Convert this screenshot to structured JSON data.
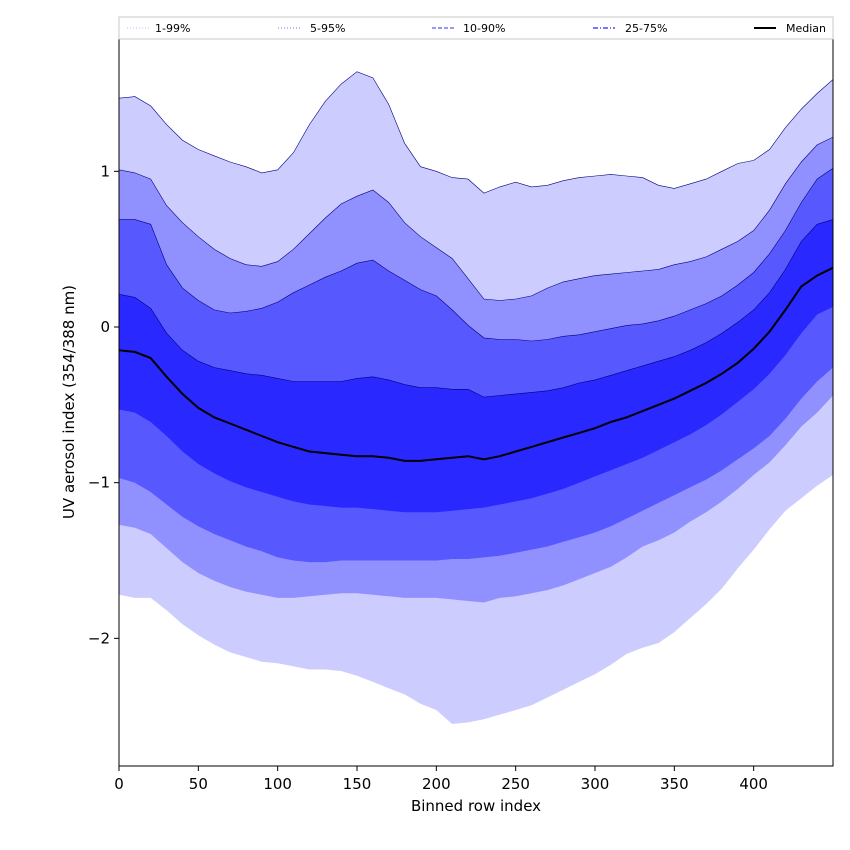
{
  "chart_data": {
    "type": "area",
    "xlabel": "Binned row index",
    "ylabel": "UV aerosol index (354/388 nm)",
    "xlim": [
      0,
      450
    ],
    "ylim": [
      -2.82,
      1.85
    ],
    "xticks": [
      0,
      50,
      100,
      150,
      200,
      250,
      300,
      350,
      400
    ],
    "xtick_labels": [
      "0",
      "50",
      "100",
      "150",
      "200",
      "250",
      "300",
      "350",
      "400"
    ],
    "yticks": [
      -2,
      -1,
      0,
      1
    ],
    "ytick_labels": [
      "−2",
      "−1",
      "0",
      "1"
    ],
    "legend_position": "top",
    "x": [
      0,
      10,
      20,
      30,
      40,
      50,
      60,
      70,
      80,
      90,
      100,
      110,
      120,
      130,
      140,
      150,
      160,
      170,
      180,
      190,
      200,
      210,
      220,
      230,
      240,
      250,
      260,
      270,
      280,
      290,
      300,
      310,
      320,
      330,
      340,
      350,
      360,
      370,
      380,
      390,
      400,
      410,
      420,
      430,
      440,
      450
    ],
    "bands": [
      {
        "name": "1-99%",
        "fill": "#ccccff",
        "edge": "#000080",
        "lower": [
          -1.72,
          -1.74,
          -1.74,
          -1.82,
          -1.91,
          -1.98,
          -2.04,
          -2.09,
          -2.12,
          -2.15,
          -2.16,
          -2.18,
          -2.2,
          -2.2,
          -2.21,
          -2.24,
          -2.28,
          -2.32,
          -2.36,
          -2.42,
          -2.46,
          -2.55,
          -2.54,
          -2.52,
          -2.49,
          -2.46,
          -2.43,
          -2.38,
          -2.33,
          -2.28,
          -2.23,
          -2.17,
          -2.1,
          -2.06,
          -2.03,
          -1.96,
          -1.87,
          -1.78,
          -1.68,
          -1.55,
          -1.43,
          -1.3,
          -1.18,
          -1.1,
          -1.02,
          -0.95
        ],
        "upper": [
          1.47,
          1.48,
          1.42,
          1.3,
          1.2,
          1.14,
          1.1,
          1.06,
          1.03,
          0.99,
          1.01,
          1.12,
          1.3,
          1.45,
          1.56,
          1.64,
          1.6,
          1.43,
          1.18,
          1.03,
          1.0,
          0.96,
          0.95,
          0.86,
          0.9,
          0.93,
          0.9,
          0.91,
          0.94,
          0.96,
          0.97,
          0.98,
          0.97,
          0.96,
          0.91,
          0.89,
          0.92,
          0.95,
          1.0,
          1.05,
          1.07,
          1.14,
          1.28,
          1.4,
          1.5,
          1.59
        ]
      },
      {
        "name": "5-95%",
        "fill": "#9090ff",
        "edge": "#000080",
        "lower": [
          -1.27,
          -1.29,
          -1.33,
          -1.42,
          -1.51,
          -1.58,
          -1.63,
          -1.67,
          -1.7,
          -1.72,
          -1.74,
          -1.74,
          -1.73,
          -1.72,
          -1.71,
          -1.71,
          -1.72,
          -1.73,
          -1.74,
          -1.74,
          -1.74,
          -1.75,
          -1.76,
          -1.77,
          -1.74,
          -1.73,
          -1.71,
          -1.69,
          -1.66,
          -1.62,
          -1.58,
          -1.54,
          -1.48,
          -1.41,
          -1.37,
          -1.32,
          -1.25,
          -1.19,
          -1.12,
          -1.04,
          -0.95,
          -0.87,
          -0.76,
          -0.64,
          -0.55,
          -0.44
        ],
        "upper": [
          1.01,
          0.99,
          0.95,
          0.78,
          0.67,
          0.58,
          0.5,
          0.44,
          0.4,
          0.39,
          0.42,
          0.5,
          0.6,
          0.7,
          0.79,
          0.84,
          0.88,
          0.8,
          0.67,
          0.58,
          0.51,
          0.44,
          0.31,
          0.18,
          0.17,
          0.18,
          0.2,
          0.25,
          0.29,
          0.31,
          0.33,
          0.34,
          0.35,
          0.36,
          0.37,
          0.4,
          0.42,
          0.45,
          0.5,
          0.55,
          0.62,
          0.75,
          0.92,
          1.06,
          1.17,
          1.22
        ]
      },
      {
        "name": "10-90%",
        "fill": "#5858ff",
        "edge": "#000080",
        "lower": [
          -0.97,
          -1.0,
          -1.06,
          -1.14,
          -1.22,
          -1.28,
          -1.33,
          -1.37,
          -1.41,
          -1.44,
          -1.48,
          -1.5,
          -1.51,
          -1.51,
          -1.5,
          -1.5,
          -1.5,
          -1.5,
          -1.5,
          -1.5,
          -1.5,
          -1.49,
          -1.49,
          -1.48,
          -1.47,
          -1.45,
          -1.43,
          -1.41,
          -1.38,
          -1.35,
          -1.32,
          -1.28,
          -1.23,
          -1.18,
          -1.13,
          -1.08,
          -1.03,
          -0.98,
          -0.92,
          -0.85,
          -0.78,
          -0.7,
          -0.59,
          -0.46,
          -0.35,
          -0.26
        ],
        "upper": [
          0.69,
          0.69,
          0.66,
          0.4,
          0.25,
          0.17,
          0.11,
          0.09,
          0.1,
          0.12,
          0.16,
          0.22,
          0.27,
          0.32,
          0.36,
          0.41,
          0.43,
          0.36,
          0.3,
          0.24,
          0.2,
          0.11,
          0.01,
          -0.07,
          -0.08,
          -0.08,
          -0.09,
          -0.08,
          -0.06,
          -0.05,
          -0.03,
          -0.01,
          0.01,
          0.02,
          0.04,
          0.07,
          0.11,
          0.15,
          0.2,
          0.27,
          0.35,
          0.47,
          0.62,
          0.8,
          0.95,
          1.02
        ]
      },
      {
        "name": "25-75%",
        "fill": "#2828ff",
        "edge": "#000080",
        "lower": [
          -0.53,
          -0.55,
          -0.61,
          -0.7,
          -0.8,
          -0.88,
          -0.94,
          -0.99,
          -1.03,
          -1.06,
          -1.09,
          -1.12,
          -1.14,
          -1.15,
          -1.16,
          -1.16,
          -1.17,
          -1.18,
          -1.19,
          -1.19,
          -1.19,
          -1.18,
          -1.17,
          -1.16,
          -1.14,
          -1.12,
          -1.1,
          -1.07,
          -1.04,
          -1.0,
          -0.96,
          -0.92,
          -0.88,
          -0.84,
          -0.79,
          -0.74,
          -0.69,
          -0.63,
          -0.56,
          -0.48,
          -0.4,
          -0.3,
          -0.18,
          -0.04,
          0.08,
          0.13
        ],
        "upper": [
          0.21,
          0.19,
          0.12,
          -0.04,
          -0.15,
          -0.22,
          -0.26,
          -0.28,
          -0.3,
          -0.31,
          -0.33,
          -0.35,
          -0.35,
          -0.35,
          -0.35,
          -0.33,
          -0.32,
          -0.34,
          -0.37,
          -0.39,
          -0.39,
          -0.4,
          -0.4,
          -0.45,
          -0.44,
          -0.43,
          -0.42,
          -0.41,
          -0.39,
          -0.36,
          -0.34,
          -0.31,
          -0.28,
          -0.25,
          -0.22,
          -0.19,
          -0.15,
          -0.1,
          -0.04,
          0.03,
          0.11,
          0.22,
          0.37,
          0.55,
          0.66,
          0.69
        ]
      }
    ],
    "median": {
      "name": "Median",
      "color": "#000000",
      "values": [
        -0.15,
        -0.16,
        -0.2,
        -0.32,
        -0.43,
        -0.52,
        -0.58,
        -0.62,
        -0.66,
        -0.7,
        -0.74,
        -0.77,
        -0.8,
        -0.81,
        -0.82,
        -0.83,
        -0.83,
        -0.84,
        -0.86,
        -0.86,
        -0.85,
        -0.84,
        -0.83,
        -0.85,
        -0.83,
        -0.8,
        -0.77,
        -0.74,
        -0.71,
        -0.68,
        -0.65,
        -0.61,
        -0.58,
        -0.54,
        -0.5,
        -0.46,
        -0.41,
        -0.36,
        -0.3,
        -0.23,
        -0.14,
        -0.03,
        0.11,
        0.26,
        0.33,
        0.38
      ]
    },
    "legend": [
      {
        "label": "1-99%",
        "color": "#ccccff",
        "style": "dotted"
      },
      {
        "label": "5-95%",
        "color": "#9090ff",
        "style": "dotted"
      },
      {
        "label": "10-90%",
        "color": "#5858ff",
        "style": "dashed"
      },
      {
        "label": "25-75%",
        "color": "#2828ff",
        "style": "dashdot"
      },
      {
        "label": "Median",
        "color": "#000000",
        "style": "solid"
      }
    ]
  }
}
